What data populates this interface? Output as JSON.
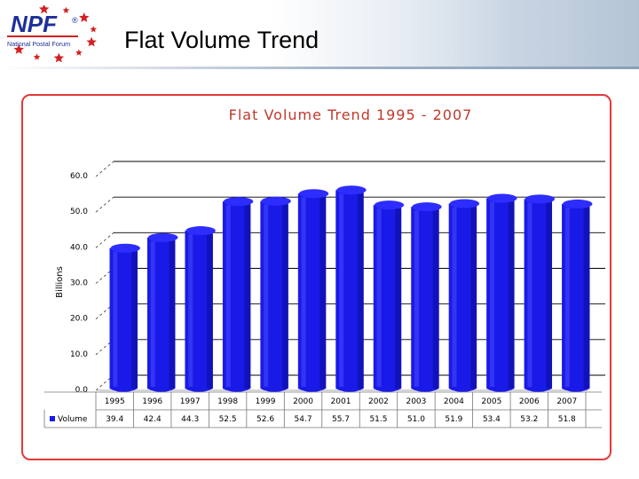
{
  "header": {
    "logo_text": "NPF",
    "logo_registered": "®",
    "logo_subtitle": "National Postal Forum",
    "title": "Flat Volume Trend"
  },
  "colors": {
    "bar_front": "#1a1ae8",
    "bar_top": "#2d2dff",
    "frame_border": "#e23a3a",
    "chart_title": "#c0392b",
    "star": "#d42020",
    "logo_blue": "#1c2f9c"
  },
  "chart_data": {
    "type": "bar",
    "title": "Flat Volume Trend 1995 - 2007",
    "ylabel": "Billions",
    "xlabel": "",
    "ylim": [
      0,
      60
    ],
    "yticks": [
      "0.0",
      "10.0",
      "20.0",
      "30.0",
      "40.0",
      "50.0",
      "60.0"
    ],
    "grid": true,
    "legend": "bottom-left (table)",
    "categories": [
      "1995",
      "1996",
      "1997",
      "1998",
      "1999",
      "2000",
      "2001",
      "2002",
      "2003",
      "2004",
      "2005",
      "2006",
      "2007"
    ],
    "series": [
      {
        "name": "Volume",
        "values": [
          39.4,
          42.4,
          44.3,
          52.5,
          52.6,
          54.7,
          55.7,
          51.5,
          51.0,
          51.9,
          53.4,
          53.2,
          51.8
        ],
        "labels": [
          "39.4",
          "42.4",
          "44.3",
          "52.5",
          "52.6",
          "54.7",
          "55.7",
          "51.5",
          "51.0",
          "51.9",
          "53.4",
          "53.2",
          "51.8"
        ]
      }
    ]
  }
}
